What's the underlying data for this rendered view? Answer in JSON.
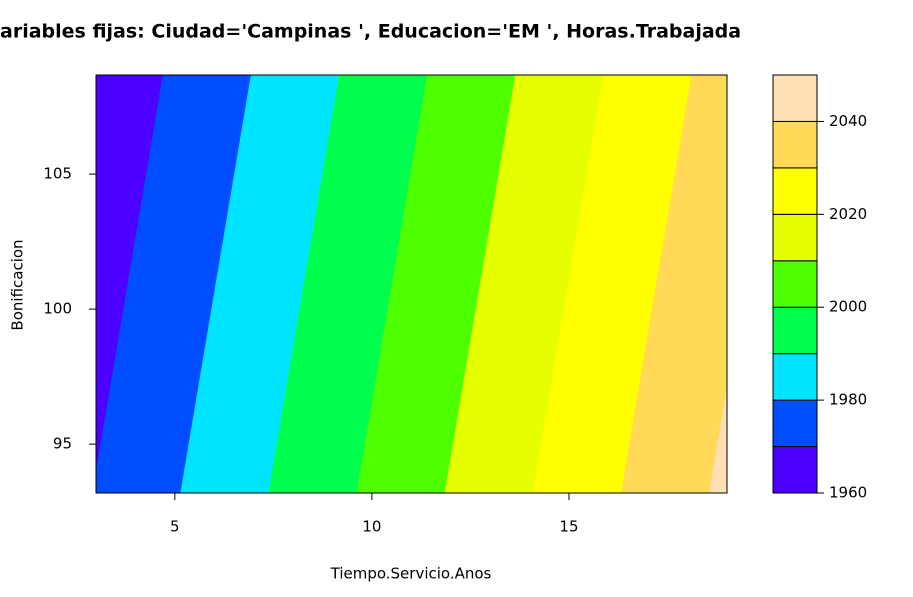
{
  "chart_data": {
    "type": "contour",
    "title": "ariables fijas: Ciudad='Campinas ', Educacion='EM ', Horas.Trabajada",
    "xlabel": "Tiempo.Servicio.Anos",
    "ylabel": "Bonificacion",
    "x": [
      3,
      19.01
    ],
    "y": [
      93.19,
      108.67
    ],
    "z": [
      [
        1970.4,
        2042.0
      ],
      [
        1962.4,
        2034.0
      ]
    ],
    "xlim": [
      3,
      19.01
    ],
    "ylim": [
      93.19,
      108.67
    ],
    "xticks": [
      5,
      10,
      15
    ],
    "yticks": [
      95,
      100,
      105
    ],
    "levels": [
      1960,
      1970,
      1980,
      1990,
      2000,
      2010,
      2020,
      2030,
      2040,
      2050
    ],
    "colors": [
      "#4c00ff",
      "#004cff",
      "#00e5ff",
      "#00ff4d",
      "#4dff00",
      "#e6ff00",
      "#ffff00",
      "#ffd957",
      "#ffdfb3"
    ],
    "colorbar_ticks": [
      1960,
      1980,
      2000,
      2020,
      2040
    ]
  }
}
